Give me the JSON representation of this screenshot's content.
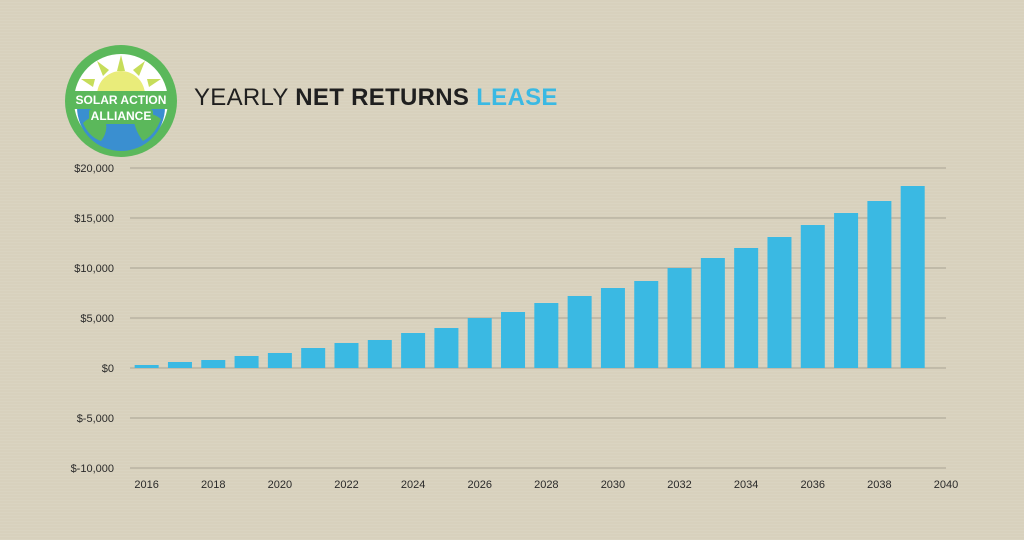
{
  "logo": {
    "line1": "SOLAR ACTION",
    "line2": "ALLIANCE"
  },
  "title": {
    "part1": "YEARLY ",
    "part2": "NET RETURNS",
    "part3": " LEASE"
  },
  "colors": {
    "bar": "#3ab9e3",
    "accent": "#3ab9e3",
    "background": "#d8d1bd",
    "logo_green": "#5bb85b",
    "logo_blue": "#3a8fd0"
  },
  "chart_data": {
    "type": "bar",
    "x": [
      2016,
      2017,
      2018,
      2019,
      2020,
      2021,
      2022,
      2023,
      2024,
      2025,
      2026,
      2027,
      2028,
      2029,
      2030,
      2031,
      2032,
      2033,
      2034,
      2035,
      2036,
      2037,
      2038,
      2039
    ],
    "values": [
      300,
      600,
      800,
      1200,
      1500,
      2000,
      2500,
      2800,
      3500,
      4000,
      5000,
      5600,
      6500,
      7200,
      8000,
      8700,
      10000,
      11000,
      12000,
      13100,
      14300,
      15500,
      16700,
      18200
    ],
    "xlim": [
      2015.5,
      2040
    ],
    "xticks": [
      "2016",
      "2018",
      "2020",
      "2022",
      "2024",
      "2026",
      "2028",
      "2030",
      "2032",
      "2034",
      "2036",
      "2038",
      "2040"
    ],
    "ylim": [
      -10000,
      20000
    ],
    "yticks": [
      "$-10,000",
      "$-5,000",
      "$0",
      "$5,000",
      "$10,000",
      "$15,000",
      "$20,000"
    ],
    "grid": true,
    "legend": "none"
  }
}
